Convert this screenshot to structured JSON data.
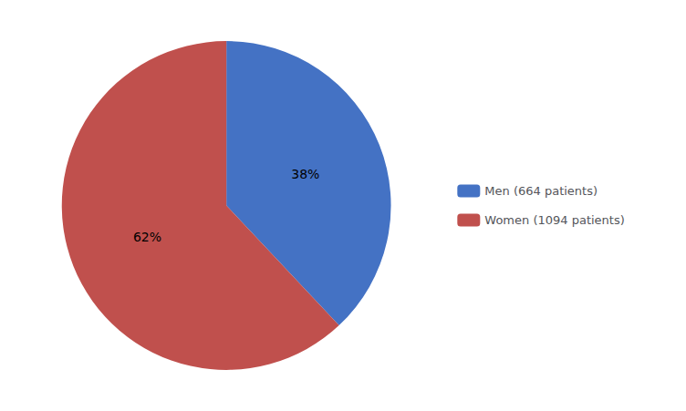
{
  "chart_data": {
    "type": "pie",
    "categories": [
      "Men (664 patients)",
      "Women (1094 patients)"
    ],
    "values": [
      38,
      62
    ],
    "value_labels": [
      "38%",
      "62%"
    ],
    "colors": [
      "#4472C4",
      "#C0504D"
    ],
    "data_labels": true,
    "legend": "right"
  }
}
